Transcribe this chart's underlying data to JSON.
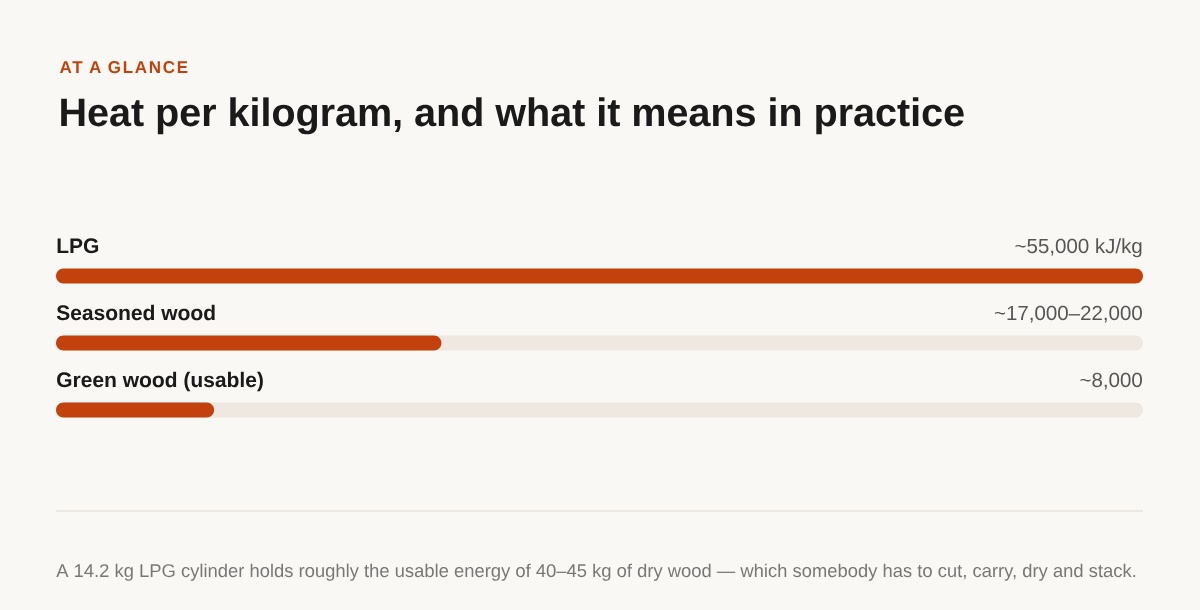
{
  "chart_data": {
    "type": "bar",
    "orientation": "horizontal",
    "subtitle": "AT A GLANCE",
    "title": "Heat per kilogram, and what it means in practice",
    "categories": [
      "LPG",
      "Seasoned wood",
      "Green wood (usable)"
    ],
    "values": [
      55000,
      19500,
      8000
    ],
    "value_labels": [
      "~55,000 kJ/kg",
      "~17,000–22,000",
      "~8,000"
    ],
    "color": "#c2410c",
    "annotations": [
      "A 14.2 kg LPG cylinder holds roughly the usable energy of 40–45 kg of dry wood — which somebody has to cut, carry, dry and stack."
    ]
  }
}
